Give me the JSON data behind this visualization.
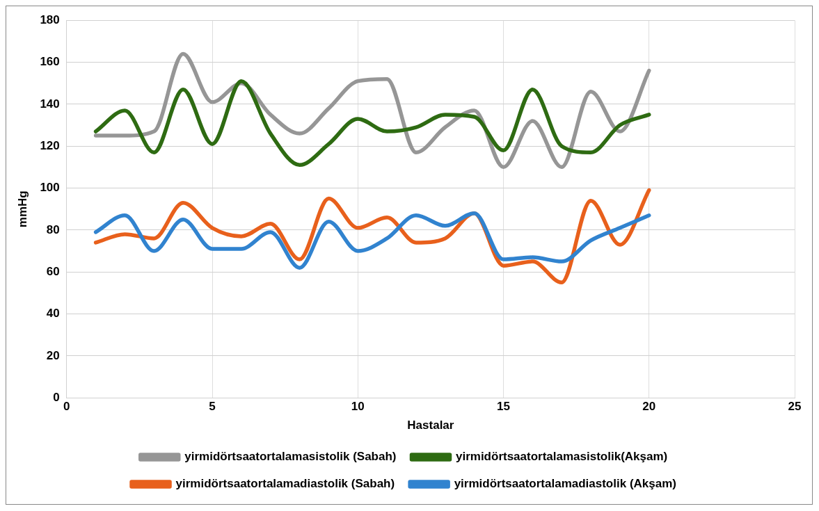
{
  "chart_data": {
    "type": "line",
    "xlabel": "Hastalar",
    "ylabel": "mmHg",
    "x": [
      1,
      2,
      3,
      4,
      5,
      6,
      7,
      8,
      9,
      10,
      11,
      12,
      13,
      14,
      15,
      16,
      17,
      18,
      19,
      20
    ],
    "xlim": [
      0,
      25
    ],
    "xticks": [
      0,
      5,
      10,
      15,
      20,
      25
    ],
    "ylim": [
      0,
      180
    ],
    "yticks": [
      0,
      20,
      40,
      60,
      80,
      100,
      120,
      140,
      160,
      180
    ],
    "grid": true,
    "legend": "bottom",
    "marker": "none",
    "line_style": "solid",
    "series": [
      {
        "name": "yirmidörtsaatortalamasistolik (Sabah)",
        "color": "#969696",
        "values": [
          125,
          125,
          127,
          164,
          141,
          150,
          135,
          126,
          138,
          151,
          152,
          117,
          129,
          137,
          110,
          132,
          110,
          146,
          127,
          156
        ]
      },
      {
        "name": "yirmidörtsaatortalamasistolik(Akşam)",
        "color": "#2e6b12",
        "values": [
          127,
          137,
          117,
          147,
          121,
          151,
          126,
          111,
          121,
          133,
          127,
          129,
          135,
          134,
          118,
          147,
          120,
          117,
          130,
          135
        ]
      },
      {
        "name": "yirmidörtsaatortalamadiastolik (Sabah)",
        "color": "#e8601c",
        "values": [
          74,
          78,
          76,
          93,
          81,
          77,
          83,
          66,
          95,
          81,
          86,
          74,
          76,
          88,
          63,
          65,
          55,
          94,
          73,
          99
        ]
      },
      {
        "name": "yirmidörtsaatortalamadiastolik (Akşam)",
        "color": "#3183cf",
        "values": [
          79,
          87,
          70,
          85,
          71,
          71,
          79,
          62,
          84,
          70,
          76,
          87,
          82,
          88,
          66,
          67,
          65,
          75,
          81,
          87
        ]
      }
    ]
  }
}
